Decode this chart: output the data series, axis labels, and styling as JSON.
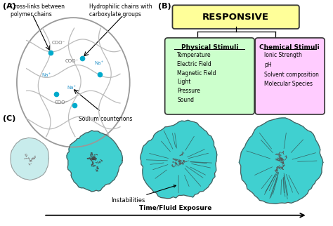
{
  "bg_color": "#ffffff",
  "panel_A_label": "(A)",
  "panel_B_label": "(B)",
  "panel_C_label": "(C)",
  "label_A_top_left": "Cross-links between\npolymer chains",
  "label_A_top_right": "Hydrophilic chains with\ncarboxylate groups",
  "label_A_bottom": "Sodium counterions",
  "coo_labels": [
    "COO⁻",
    "COO⁻",
    "COO⁻"
  ],
  "na_labels": [
    "Na⁺",
    "Na⁺",
    "Na⁺"
  ],
  "responsive_text": "RESPONSIVE",
  "responsive_bg": "#ffff99",
  "physical_title": "Physical Stimuli",
  "physical_items": [
    "Temperature",
    "Electric Field",
    "Magnetic Field",
    "Light",
    "Pressure",
    "Sound"
  ],
  "physical_bg": "#ccffcc",
  "chemical_title": "Chemical Stimuli",
  "chemical_items": [
    "Ionic Strength",
    "pH",
    "Solvent composition",
    "Molecular Species"
  ],
  "chemical_bg": "#ffccff",
  "box_edge_color": "#333333",
  "instabilities_label": "Instabilities",
  "time_label": "Time/Fluid Exposure",
  "gel_color_light": "#c8ecec",
  "gel_color_medium": "#40d0d0",
  "chain_color": "#555555",
  "crosslink_color": "#00aacc"
}
